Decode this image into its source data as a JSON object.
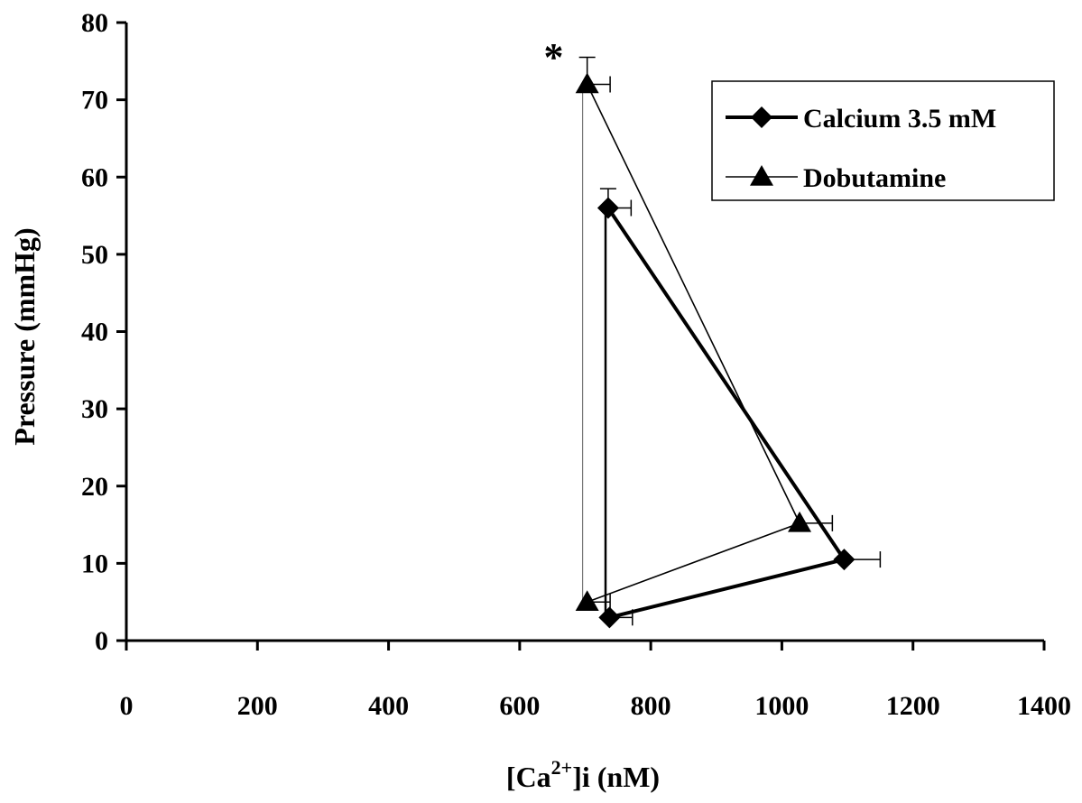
{
  "chart_data": {
    "type": "line",
    "xlabel": {
      "prefix": "[Ca",
      "superscript": "2+",
      "suffix": "]i (nM)"
    },
    "ylabel": "Pressure (mmHg)",
    "xlim": [
      0,
      1400
    ],
    "ylim": [
      0,
      80
    ],
    "x_ticks": [
      "0",
      "200",
      "400",
      "600",
      "800",
      "1000",
      "1200",
      "1400"
    ],
    "y_ticks": [
      "0",
      "10",
      "20",
      "30",
      "40",
      "50",
      "60",
      "70",
      "80"
    ],
    "grid": false,
    "legend_position": "top-right",
    "series": [
      {
        "name": "Calcium 3.5 mM",
        "marker": "diamond",
        "line_weight": "thick",
        "points": [
          {
            "x": 737,
            "y": 3,
            "x_err": 35
          },
          {
            "x": 1095,
            "y": 10.5,
            "x_err": 55
          },
          {
            "x": 735,
            "y": 56,
            "y_err": 2.5,
            "x_err": 35
          }
        ],
        "closing_segment": {
          "x": 731,
          "y_from": 56,
          "y_to": 3
        }
      },
      {
        "name": "Dobutamine",
        "marker": "triangle",
        "line_weight": "thin",
        "points": [
          {
            "x": 703,
            "y": 5,
            "x_err": 35
          },
          {
            "x": 1027,
            "y": 15.2,
            "x_err": 50
          },
          {
            "x": 703,
            "y": 72,
            "y_err": 3.5,
            "x_err": 35
          }
        ],
        "closing_segment": {
          "x": 696,
          "y_from": 72,
          "y_to": 5
        }
      }
    ],
    "annotations": [
      {
        "text": "*",
        "x": 645,
        "y": 75
      }
    ]
  }
}
